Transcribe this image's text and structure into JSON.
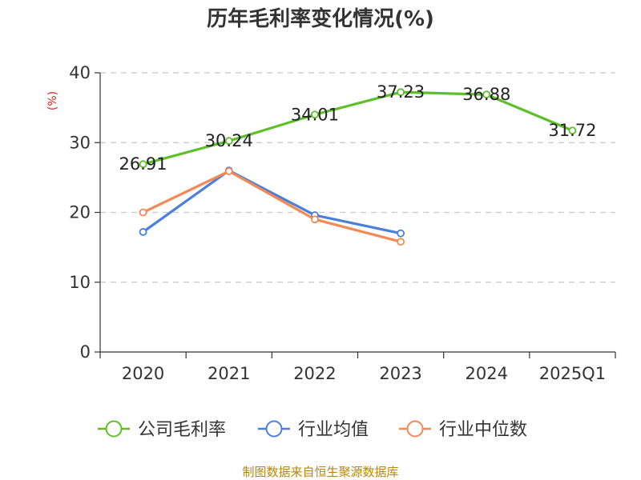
{
  "chart_data": {
    "type": "line",
    "title": "历年毛利率变化情况(%)",
    "ylabel": "(%)",
    "xlabel": "",
    "categories": [
      "2020",
      "2021",
      "2022",
      "2023",
      "2024",
      "2025Q1"
    ],
    "ylim": [
      0,
      40
    ],
    "yticks": [
      0,
      10,
      20,
      30,
      40
    ],
    "grid": "horizontal-dashed",
    "legend_position": "bottom",
    "series": [
      {
        "name": "公司毛利率",
        "color": "#5cc028",
        "values": [
          26.91,
          30.24,
          34.01,
          37.23,
          36.88,
          31.72
        ],
        "labels": [
          "26.91",
          "30.24",
          "34.01",
          "37.23",
          "36.88",
          "31.72"
        ]
      },
      {
        "name": "行业均值",
        "color": "#4a7fdc",
        "values": [
          17.2,
          26.0,
          19.6,
          17.0,
          null,
          null
        ]
      },
      {
        "name": "行业中位数",
        "color": "#f28a55",
        "values": [
          20.0,
          25.9,
          19.0,
          15.8,
          null,
          null
        ]
      }
    ]
  },
  "source": "制图数据来自恒生聚源数据库"
}
